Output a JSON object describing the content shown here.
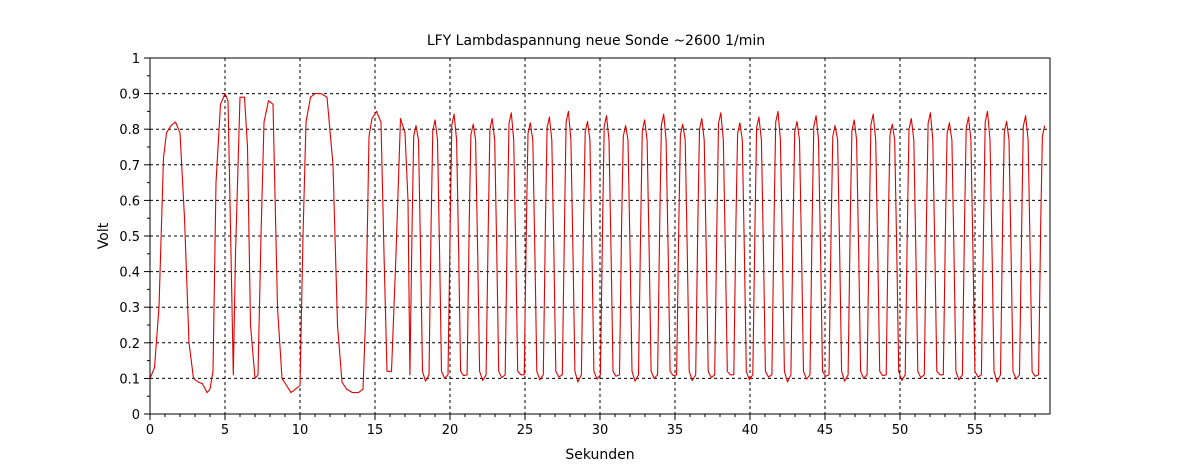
{
  "chart_data": {
    "type": "line",
    "title": "LFY  Lambdaspannung neue Sonde ~2600 1/min",
    "xlabel": "Sekunden",
    "ylabel": "Volt",
    "xlim": [
      0,
      60
    ],
    "ylim": [
      0,
      1
    ],
    "x_ticks": [
      0,
      5,
      10,
      15,
      20,
      25,
      30,
      35,
      40,
      45,
      50,
      55
    ],
    "x_tick_labels": [
      "0",
      "5",
      "10",
      "15",
      "20",
      "25",
      "30",
      "35",
      "40",
      "45",
      "50",
      "55"
    ],
    "y_ticks": [
      0,
      0.1,
      0.2,
      0.3,
      0.4,
      0.5,
      0.6,
      0.7,
      0.8,
      0.9,
      1
    ],
    "y_tick_labels": [
      "0",
      "0.1",
      "0.2",
      "0.3",
      "0.4",
      "0.5",
      "0.6",
      "0.7",
      "0.8",
      "0.9",
      "1"
    ],
    "grid": true,
    "series_color": "#e00000",
    "series": [
      {
        "x": [
          0,
          0.3,
          0.6,
          0.9,
          1.1,
          1.4,
          1.7,
          2.0,
          2.3,
          2.6,
          2.9,
          3.2,
          3.5,
          3.8,
          4.0,
          4.2,
          4.4,
          4.7,
          5.0,
          5.2,
          5.4,
          5.55,
          5.7,
          6.0,
          6.3,
          6.5,
          6.7,
          7.0,
          7.2,
          7.4,
          7.6,
          7.9,
          8.2,
          8.5,
          8.8,
          9.1,
          9.4,
          9.7,
          10.0,
          10.2,
          10.4,
          10.7,
          11.0,
          11.4,
          11.8,
          12.2,
          12.5,
          12.8,
          13.1,
          13.5,
          13.9,
          14.2,
          14.4,
          14.6,
          14.8,
          15.1,
          15.4,
          15.6,
          15.8,
          16.1,
          16.4,
          16.7,
          17.0,
          17.2
        ],
        "y": [
          0.1,
          0.13,
          0.3,
          0.72,
          0.79,
          0.81,
          0.82,
          0.79,
          0.55,
          0.2,
          0.1,
          0.09,
          0.085,
          0.06,
          0.07,
          0.12,
          0.65,
          0.87,
          0.9,
          0.88,
          0.45,
          0.11,
          0.45,
          0.89,
          0.89,
          0.75,
          0.25,
          0.1,
          0.11,
          0.5,
          0.82,
          0.88,
          0.87,
          0.3,
          0.1,
          0.08,
          0.06,
          0.07,
          0.08,
          0.5,
          0.82,
          0.89,
          0.9,
          0.9,
          0.89,
          0.7,
          0.25,
          0.09,
          0.07,
          0.06,
          0.06,
          0.07,
          0.3,
          0.78,
          0.83,
          0.85,
          0.82,
          0.45,
          0.12,
          0.12,
          0.45,
          0.83,
          0.79,
          0.6
        ]
      }
    ],
    "oscillation_region": {
      "x_start": 17.2,
      "x_end": 59.8,
      "period": 1.27,
      "peak": 0.83,
      "trough": 0.1
    }
  }
}
